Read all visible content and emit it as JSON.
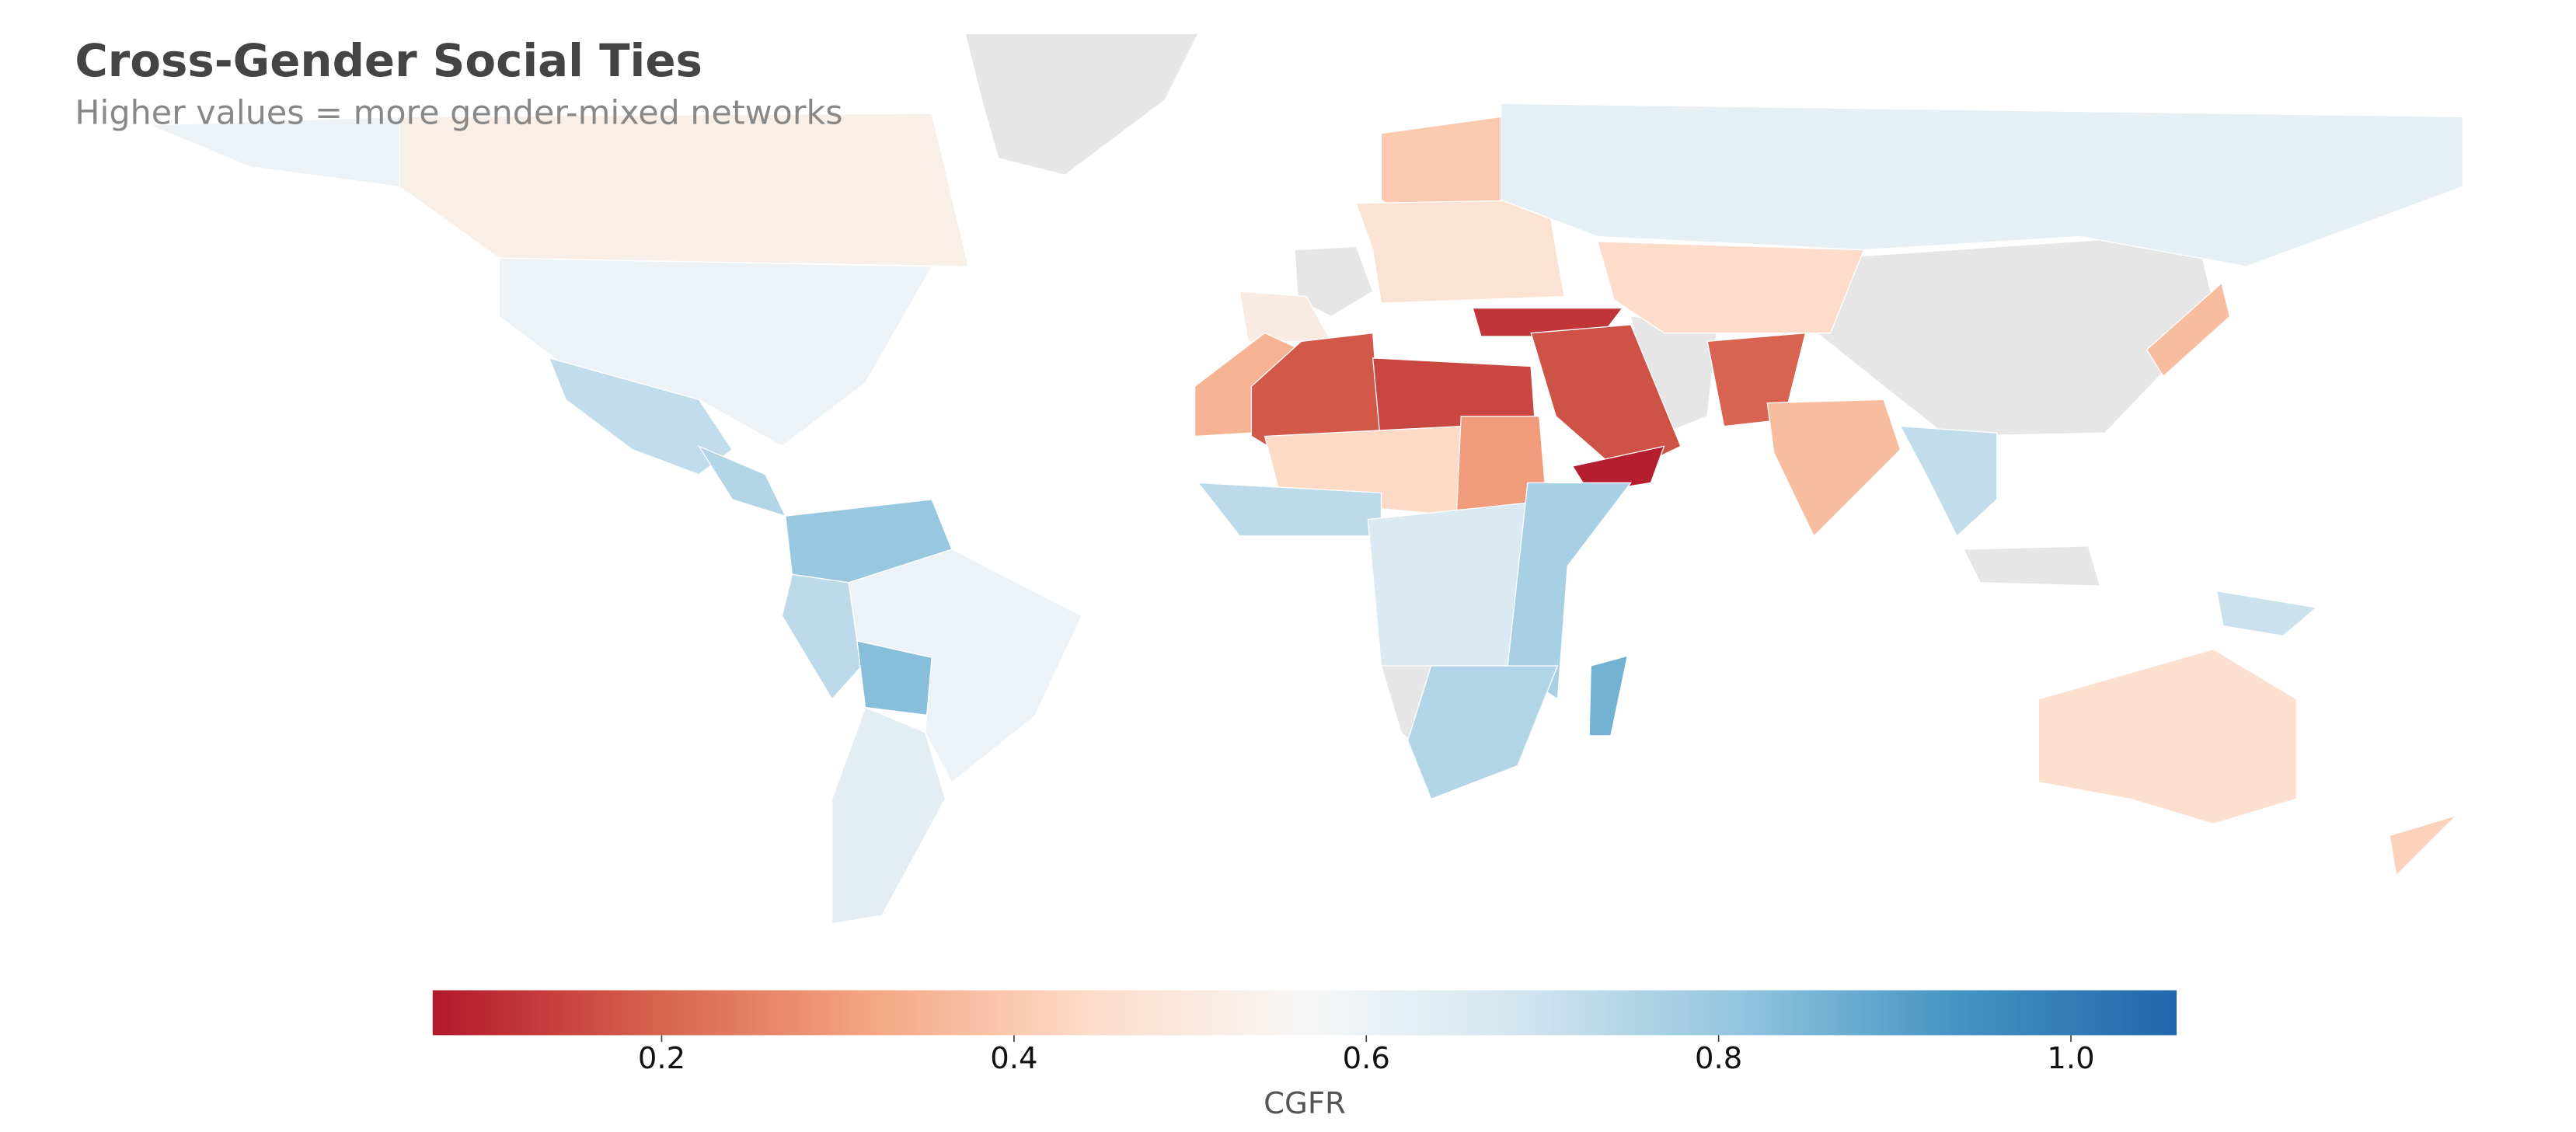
{
  "chart_data": {
    "type": "choropleth",
    "title": "Cross-Gender Social Ties",
    "subtitle": "Higher values = more gender-mixed networks",
    "no_data_color": "#e6e6e6",
    "values": [
      0.53,
      0.6,
      0.6,
      0.72,
      0.75,
      0.8,
      0.73,
      0.83,
      0.6,
      0.63,
      0.51,
      0.4,
      0.47,
      0.62,
      0.45,
      0.12,
      0.35,
      0.18,
      0.15,
      0.17,
      0.08,
      0.2,
      0.37,
      0.44,
      0.3,
      0.73,
      0.66,
      0.77,
      0.75,
      0.86,
      0.72,
      0.37,
      0.46,
      0.42,
      0.7
    ],
    "colorbar": {
      "label": "CGFR",
      "lim": [
        0.07,
        1.06
      ],
      "ticks": [
        0.2,
        0.4,
        0.6,
        0.8,
        {
          "value": 1,
          "label": "1.0"
        }
      ],
      "colors": [
        "#b2182b",
        "#d6604d",
        "#f4a582",
        "#fddbc7",
        "#f7f7f7",
        "#d1e5f0",
        "#92c5de",
        "#4393c3",
        "#2166ac"
      ]
    }
  }
}
